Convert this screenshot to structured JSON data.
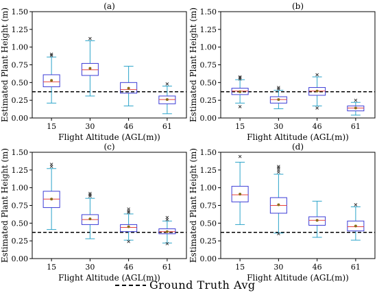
{
  "colors": {
    "box": "#3b3bd6",
    "whisker": "#2aa3c9",
    "median": "#e8403a",
    "mean": "#8a6d1a",
    "outlier": "#333333",
    "ground_truth": "#000000"
  },
  "legend": {
    "label": "Ground Truth Avg"
  },
  "chart_data": [
    {
      "type": "box",
      "title": "(a)",
      "xlabel": "Flight Altitude (AGL(m))",
      "ylabel": "Estimated Plant Height (m)",
      "ylim": [
        0.0,
        1.5
      ],
      "yticks": [
        "0.00",
        "0.25",
        "0.50",
        "0.75",
        "1.00",
        "1.25",
        "1.50"
      ],
      "categories": [
        "15",
        "30",
        "46",
        "61"
      ],
      "ground_truth": 0.37,
      "boxes": [
        {
          "whislo": 0.21,
          "q1": 0.44,
          "med": 0.51,
          "q3": 0.61,
          "whishi": 0.86,
          "mean": 0.53,
          "fliers": [
            0.88,
            0.9
          ]
        },
        {
          "whislo": 0.31,
          "q1": 0.6,
          "med": 0.68,
          "q3": 0.77,
          "whishi": 1.09,
          "mean": 0.7,
          "fliers": [
            1.12
          ]
        },
        {
          "whislo": 0.17,
          "q1": 0.35,
          "med": 0.4,
          "q3": 0.5,
          "whishi": 0.73,
          "mean": 0.42,
          "fliers": []
        },
        {
          "whislo": 0.06,
          "q1": 0.2,
          "med": 0.26,
          "q3": 0.31,
          "whishi": 0.45,
          "mean": 0.26,
          "fliers": [
            0.48
          ]
        }
      ]
    },
    {
      "type": "box",
      "title": "(b)",
      "xlabel": "Flight Altitude (AGL(m))",
      "ylabel": "Estimated Plant Height (m)",
      "ylim": [
        0.0,
        1.5
      ],
      "yticks": [
        "0.00",
        "0.25",
        "0.50",
        "0.75",
        "1.00",
        "1.25",
        "1.50"
      ],
      "categories": [
        "15",
        "30",
        "46",
        "61"
      ],
      "ground_truth": 0.37,
      "boxes": [
        {
          "whislo": 0.21,
          "q1": 0.33,
          "med": 0.38,
          "q3": 0.42,
          "whishi": 0.54,
          "mean": 0.37,
          "fliers": [
            0.16,
            0.55,
            0.57,
            0.58
          ]
        },
        {
          "whislo": 0.13,
          "q1": 0.21,
          "med": 0.26,
          "q3": 0.3,
          "whishi": 0.39,
          "mean": 0.26,
          "fliers": [
            0.41,
            0.43
          ]
        },
        {
          "whislo": 0.17,
          "q1": 0.32,
          "med": 0.38,
          "q3": 0.43,
          "whishi": 0.58,
          "mean": 0.38,
          "fliers": [
            0.14,
            0.61
          ]
        },
        {
          "whislo": 0.04,
          "q1": 0.1,
          "med": 0.14,
          "q3": 0.17,
          "whishi": 0.22,
          "mean": 0.14,
          "fliers": [
            0.25
          ]
        }
      ]
    },
    {
      "type": "box",
      "title": "(c)",
      "xlabel": "Flight Altitude (AGL(m))",
      "ylabel": "Estimated Plant Height (m)",
      "ylim": [
        0.0,
        1.5
      ],
      "yticks": [
        "0.00",
        "0.25",
        "0.50",
        "0.75",
        "1.00",
        "1.25",
        "1.50"
      ],
      "categories": [
        "15",
        "30",
        "46",
        "61"
      ],
      "ground_truth": 0.37,
      "boxes": [
        {
          "whislo": 0.41,
          "q1": 0.72,
          "med": 0.84,
          "q3": 0.95,
          "whishi": 1.27,
          "mean": 0.84,
          "fliers": [
            1.3,
            1.33
          ]
        },
        {
          "whislo": 0.28,
          "q1": 0.48,
          "med": 0.55,
          "q3": 0.62,
          "whishi": 0.85,
          "mean": 0.56,
          "fliers": [
            0.88,
            0.9,
            0.92
          ]
        },
        {
          "whislo": 0.26,
          "q1": 0.38,
          "med": 0.44,
          "q3": 0.48,
          "whishi": 0.63,
          "mean": 0.45,
          "fliers": [
            0.24,
            0.65,
            0.67,
            0.7
          ]
        },
        {
          "whislo": 0.22,
          "q1": 0.35,
          "med": 0.38,
          "q3": 0.42,
          "whishi": 0.53,
          "mean": 0.38,
          "fliers": [
            0.21,
            0.55,
            0.58
          ]
        }
      ]
    },
    {
      "type": "box",
      "title": "(d)",
      "xlabel": "Flight Altitude (AGL(m))",
      "ylabel": "Estimated Plant Height (m)",
      "ylim": [
        0.0,
        1.5
      ],
      "yticks": [
        "0.00",
        "0.25",
        "0.50",
        "0.75",
        "1.00",
        "1.25",
        "1.50"
      ],
      "categories": [
        "15",
        "30",
        "46",
        "61"
      ],
      "ground_truth": 0.37,
      "boxes": [
        {
          "whislo": 0.48,
          "q1": 0.8,
          "med": 0.9,
          "q3": 1.02,
          "whishi": 1.36,
          "mean": 0.91,
          "fliers": [
            1.44
          ]
        },
        {
          "whislo": 0.36,
          "q1": 0.64,
          "med": 0.75,
          "q3": 0.86,
          "whishi": 1.19,
          "mean": 0.76,
          "fliers": [
            1.22,
            1.25,
            1.28,
            1.3,
            0.35
          ]
        },
        {
          "whislo": 0.3,
          "q1": 0.47,
          "med": 0.54,
          "q3": 0.59,
          "whishi": 0.81,
          "mean": 0.54,
          "fliers": []
        },
        {
          "whislo": 0.26,
          "q1": 0.39,
          "med": 0.45,
          "q3": 0.53,
          "whishi": 0.73,
          "mean": 0.46,
          "fliers": [
            0.76
          ]
        }
      ]
    }
  ]
}
